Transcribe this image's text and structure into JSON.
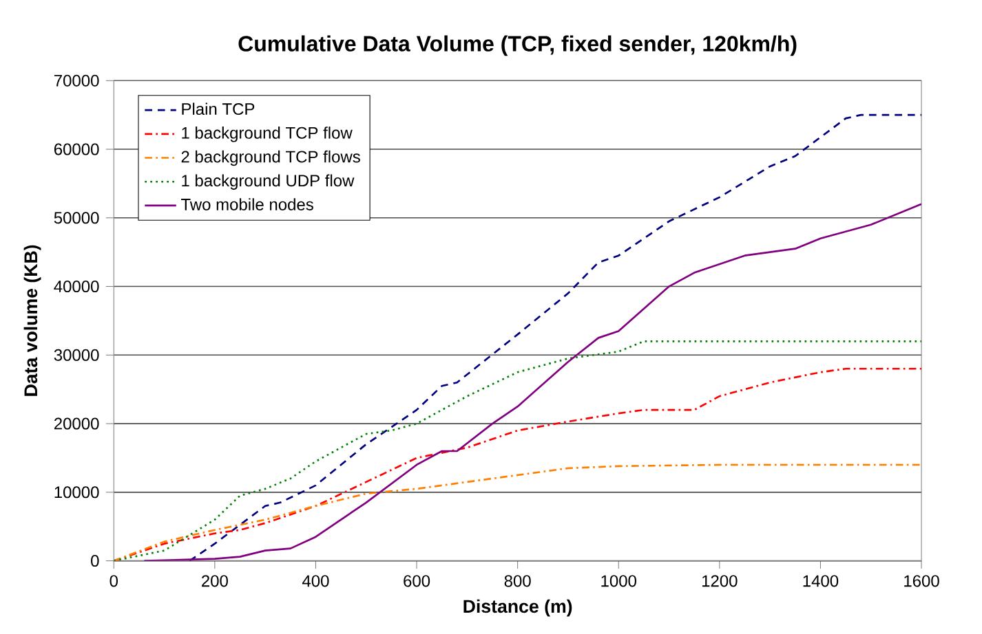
{
  "chart_data": {
    "type": "line",
    "title": "Cumulative Data Volume (TCP, fixed sender, 120km/h)",
    "xlabel": "Distance (m)",
    "ylabel": "Data volume (KB)",
    "xlim": [
      0,
      1600
    ],
    "xticks": [
      0,
      200,
      400,
      600,
      800,
      1000,
      1200,
      1400,
      1600
    ],
    "ylim": [
      0,
      70000
    ],
    "yticks": [
      0,
      10000,
      20000,
      30000,
      40000,
      50000,
      60000,
      70000
    ],
    "grid": "y",
    "legend": "top left",
    "marker": "none",
    "series": [
      {
        "name": "Plain TCP",
        "color": "#000080",
        "line_style": "dashed",
        "x": [
          150,
          200,
          300,
          330,
          400,
          500,
          600,
          650,
          680,
          800,
          900,
          960,
          1000,
          1100,
          1200,
          1300,
          1350,
          1450,
          1480,
          1600
        ],
        "values": [
          0,
          2500,
          8000,
          8500,
          11000,
          17000,
          22000,
          25500,
          26000,
          33000,
          39000,
          43500,
          44500,
          49500,
          53000,
          57500,
          59000,
          64500,
          65000,
          65000
        ]
      },
      {
        "name": "1 background TCP flow",
        "color": "#ff0000",
        "line_style": "dashdot",
        "x": [
          0,
          100,
          200,
          250,
          300,
          400,
          500,
          600,
          700,
          800,
          900,
          1000,
          1050,
          1150,
          1200,
          1300,
          1400,
          1450,
          1600
        ],
        "values": [
          0,
          2500,
          4000,
          4500,
          5500,
          8000,
          11500,
          15000,
          16500,
          19000,
          20300,
          21500,
          22000,
          22000,
          24000,
          26000,
          27500,
          28000,
          28000
        ]
      },
      {
        "name": "2 background TCP flows",
        "color": "#ff8000",
        "line_style": "dashdot",
        "x": [
          0,
          100,
          200,
          300,
          400,
          500,
          600,
          700,
          800,
          900,
          1000,
          1200,
          1600
        ],
        "values": [
          0,
          2800,
          4500,
          6000,
          8000,
          9800,
          10500,
          11500,
          12500,
          13500,
          13800,
          14000,
          14000
        ]
      },
      {
        "name": "1 background UDP flow",
        "color": "#008000",
        "line_style": "dotted",
        "x": [
          0,
          100,
          200,
          250,
          300,
          350,
          400,
          500,
          550,
          600,
          700,
          800,
          900,
          1000,
          1050,
          1600
        ],
        "values": [
          0,
          1500,
          6000,
          9500,
          10500,
          12000,
          14500,
          18500,
          19000,
          20000,
          24000,
          27500,
          29500,
          30500,
          32000,
          32000
        ]
      },
      {
        "name": "Two mobile nodes",
        "color": "#800080",
        "line_style": "solid",
        "x": [
          60,
          200,
          250,
          300,
          350,
          400,
          500,
          600,
          650,
          680,
          750,
          800,
          900,
          960,
          1000,
          1100,
          1150,
          1250,
          1300,
          1350,
          1400,
          1500,
          1600
        ],
        "values": [
          0,
          300,
          600,
          1500,
          1800,
          3500,
          8500,
          14000,
          16000,
          16000,
          20000,
          22500,
          29000,
          32500,
          33500,
          40000,
          42000,
          44500,
          45000,
          45500,
          47000,
          49000,
          52000
        ]
      }
    ]
  }
}
